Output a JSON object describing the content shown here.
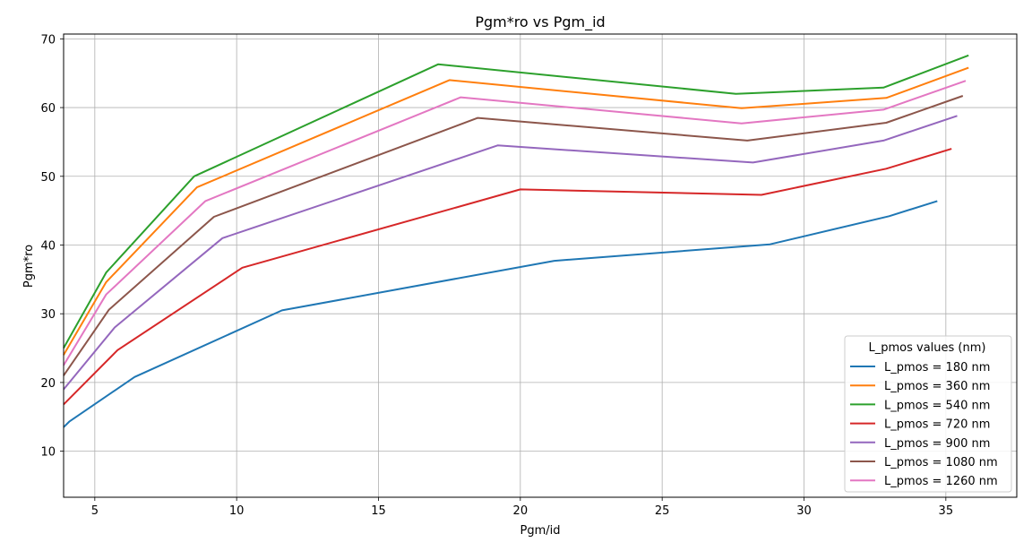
{
  "chart_data": {
    "type": "line",
    "title": "Pgm*ro vs Pgm_id",
    "xlabel": "Pgm/id",
    "ylabel": "Pgm*ro",
    "xlim": [
      3.9,
      37.5
    ],
    "ylim": [
      3.3,
      70.7
    ],
    "xticks": [
      5,
      10,
      15,
      20,
      25,
      30,
      35
    ],
    "yticks": [
      10,
      20,
      30,
      40,
      50,
      60,
      70
    ],
    "grid": true,
    "legend": {
      "title": "L_pmos values (nm)",
      "placement": "lower right"
    },
    "series": [
      {
        "name": "L_pmos = 180 nm",
        "color": "#1f77b4",
        "x": [
          3.9,
          4.1,
          6.4,
          11.6,
          21.2,
          28.8,
          33.0,
          34.7
        ],
        "y": [
          13.5,
          14.3,
          20.8,
          30.5,
          37.7,
          40.1,
          44.2,
          46.4
        ]
      },
      {
        "name": "L_pmos = 360 nm",
        "color": "#ff7f0e",
        "x": [
          3.9,
          5.4,
          8.6,
          17.5,
          27.8,
          32.9,
          35.8
        ],
        "y": [
          24.0,
          34.6,
          48.4,
          64.0,
          59.9,
          61.4,
          65.8
        ]
      },
      {
        "name": "L_pmos = 540 nm",
        "color": "#2ca02c",
        "x": [
          3.9,
          5.4,
          8.5,
          17.1,
          27.6,
          32.8,
          35.8
        ],
        "y": [
          25.0,
          36.0,
          50.0,
          66.3,
          62.0,
          62.9,
          67.6
        ]
      },
      {
        "name": "L_pmos = 720 nm",
        "color": "#d62728",
        "x": [
          3.9,
          5.8,
          10.2,
          20.0,
          28.5,
          32.9,
          35.2
        ],
        "y": [
          16.8,
          24.7,
          36.7,
          48.1,
          47.3,
          51.1,
          54.0
        ]
      },
      {
        "name": "L_pmos = 900 nm",
        "color": "#9467bd",
        "x": [
          3.9,
          5.7,
          9.5,
          19.2,
          28.2,
          32.8,
          35.4
        ],
        "y": [
          19.0,
          28.0,
          41.0,
          54.5,
          52.0,
          55.2,
          58.8
        ]
      },
      {
        "name": "L_pmos = 1080 nm",
        "color": "#8c564b",
        "x": [
          3.9,
          5.5,
          9.2,
          18.5,
          28.0,
          32.9,
          35.6
        ],
        "y": [
          21.0,
          30.6,
          44.1,
          58.5,
          55.2,
          57.8,
          61.7
        ]
      },
      {
        "name": "L_pmos = 1260 nm",
        "color": "#e377c2",
        "x": [
          3.9,
          5.4,
          8.9,
          17.9,
          27.8,
          32.8,
          35.7
        ],
        "y": [
          22.5,
          32.8,
          46.4,
          61.5,
          57.7,
          59.7,
          63.9
        ]
      }
    ]
  }
}
